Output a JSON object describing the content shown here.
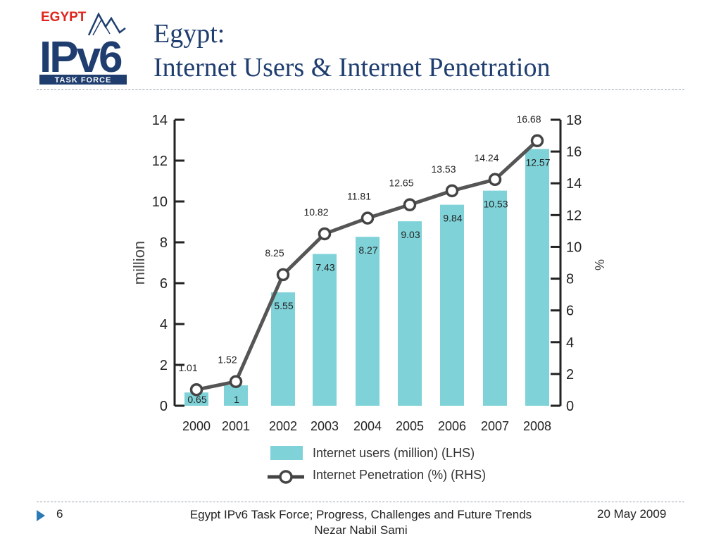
{
  "logo": {
    "country": "EGYPT",
    "mark": "IPv6",
    "subtitle": "TASK FORCE"
  },
  "title": {
    "line1": "Egypt:",
    "line2": "Internet Users & Internet Penetration"
  },
  "chart_data": {
    "type": "bar",
    "categories": [
      "2000",
      "2001",
      "2002",
      "2003",
      "2004",
      "2005",
      "2006",
      "2007",
      "2008"
    ],
    "series": [
      {
        "name": "Internet users (million) (LHS)",
        "kind": "bar",
        "axis": "left",
        "values": [
          0.65,
          1,
          5.55,
          7.43,
          8.27,
          9.03,
          9.84,
          10.53,
          12.57
        ],
        "labels": [
          "0.65",
          "1",
          "5.55",
          "7.43",
          "8.27",
          "9.03",
          "9.84",
          "10.53",
          "12.57"
        ],
        "color": "#7fd3d8"
      },
      {
        "name": "Internet Penetration (%) (RHS)",
        "kind": "line",
        "axis": "right",
        "values": [
          1.01,
          1.52,
          8.25,
          10.82,
          11.81,
          12.65,
          13.53,
          14.24,
          16.68
        ],
        "labels": [
          "1.01",
          "1.52",
          "8.25",
          "10.82",
          "11.81",
          "12.65",
          "13.53",
          "14.24",
          "16.68"
        ],
        "color": "#555555"
      }
    ],
    "left_axis": {
      "label": "million",
      "range": [
        0,
        14
      ],
      "ticks": [
        "0",
        "2",
        "4",
        "6",
        "8",
        "10",
        "12",
        "14"
      ]
    },
    "right_axis": {
      "label": "%",
      "range": [
        0,
        18
      ],
      "ticks": [
        "0",
        "2",
        "4",
        "6",
        "8",
        "10",
        "12",
        "14",
        "16",
        "18"
      ]
    },
    "legend": {
      "placement": "bottom"
    },
    "grid": false
  },
  "footer": {
    "slide_number": "6",
    "center_text": "Egypt IPv6 Task Force; Progress, Challenges and Future Trends Nezar Nabil Sami",
    "date": "20 May 2009"
  }
}
